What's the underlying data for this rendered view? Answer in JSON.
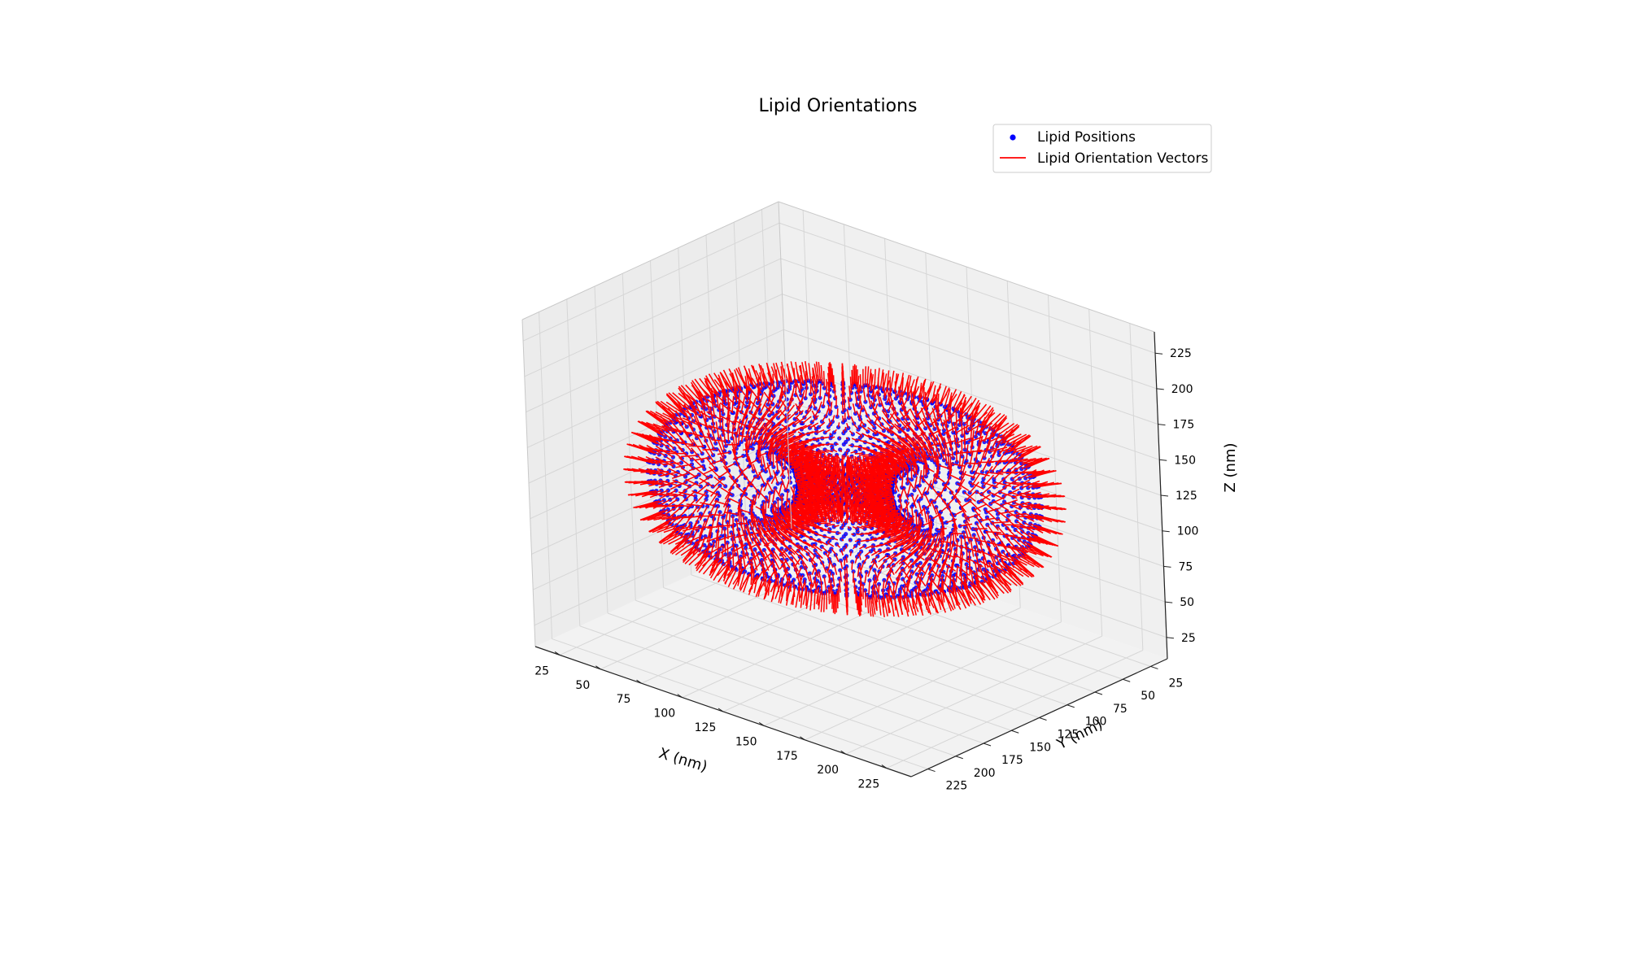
{
  "chart_data": {
    "type": "scatter3d",
    "title": "Lipid Orientations",
    "xlabel": "X (nm)",
    "ylabel": "Y (nm)",
    "zlabel": "Z (nm)",
    "xlim": [
      10,
      240
    ],
    "ylim": [
      10,
      240
    ],
    "zlim": [
      10,
      240
    ],
    "xticks": [
      "25",
      "50",
      "75",
      "100",
      "125",
      "150",
      "175",
      "200",
      "225"
    ],
    "yticks": [
      "25",
      "50",
      "75",
      "100",
      "125",
      "150",
      "175",
      "200",
      "225"
    ],
    "zticks": [
      "25",
      "50",
      "75",
      "100",
      "125",
      "150",
      "175",
      "200",
      "225"
    ],
    "grid": true,
    "legend_position": "top-right",
    "structure": {
      "shape": "torus",
      "center": [
        125,
        125,
        125
      ],
      "major_radius": 62,
      "minor_radius": 38,
      "orientation_vector_length": 12
    },
    "series": [
      {
        "name": "Lipid Positions",
        "kind": "points",
        "color": "#0000ff"
      },
      {
        "name": "Lipid Orientation Vectors",
        "kind": "segments",
        "color": "#ff0000"
      }
    ]
  }
}
